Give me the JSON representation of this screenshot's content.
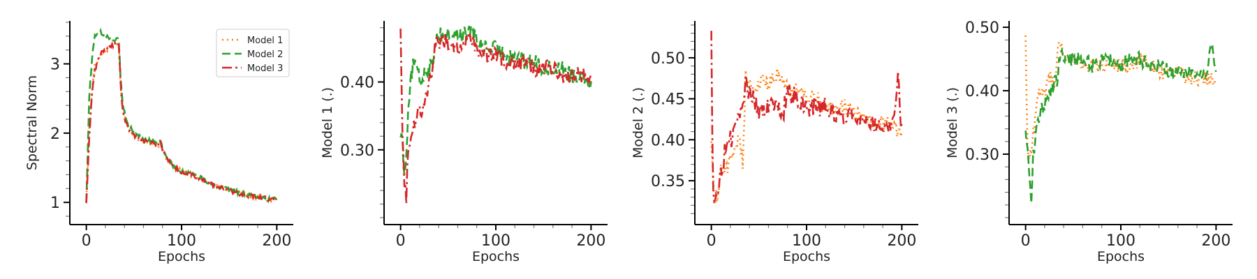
{
  "colors": {
    "model1": "#ff7f0e",
    "model2": "#2ca02c",
    "model3": "#d62728",
    "axis": "#000000"
  },
  "chart_data": [
    {
      "type": "line",
      "xlabel": "Epochs",
      "ylabel": "Spectral Norm",
      "xlim": [
        -10,
        210
      ],
      "ylim": [
        0.78,
        3.62
      ],
      "xticks": [
        0,
        100,
        200
      ],
      "yticks": [
        1,
        2,
        3
      ],
      "yminor": 0.2,
      "legend": {
        "placement": "top-right",
        "entries": [
          "Model 1",
          "Model 2",
          "Model 3"
        ]
      },
      "series": [
        {
          "name": "Model 1",
          "style": "dotted",
          "color": "#ff7f0e",
          "x": [
            0,
            3,
            6,
            9,
            12,
            15,
            20,
            25,
            30,
            34,
            36,
            38,
            40,
            45,
            50,
            55,
            60,
            65,
            70,
            75,
            78,
            80,
            85,
            90,
            95,
            100,
            110,
            120,
            130,
            140,
            150,
            160,
            170,
            180,
            190,
            200
          ],
          "values": [
            1.0,
            2.1,
            2.6,
            3.0,
            3.05,
            3.1,
            3.2,
            3.25,
            3.3,
            3.3,
            2.7,
            2.4,
            2.25,
            2.05,
            1.95,
            1.9,
            1.88,
            1.85,
            1.82,
            1.8,
            1.85,
            1.75,
            1.62,
            1.55,
            1.48,
            1.45,
            1.4,
            1.35,
            1.28,
            1.22,
            1.18,
            1.14,
            1.1,
            1.08,
            1.05,
            1.03
          ],
          "noise": 0.03
        },
        {
          "name": "Model 2",
          "style": "dashed",
          "color": "#2ca02c",
          "x": [
            0,
            3,
            6,
            9,
            12,
            15,
            20,
            25,
            30,
            34,
            36,
            38,
            40,
            45,
            50,
            55,
            60,
            65,
            70,
            75,
            78,
            80,
            85,
            90,
            95,
            100,
            110,
            120,
            130,
            140,
            150,
            160,
            170,
            180,
            190,
            200
          ],
          "values": [
            1.0,
            2.5,
            3.1,
            3.4,
            3.45,
            3.45,
            3.4,
            3.38,
            3.35,
            3.35,
            2.8,
            2.45,
            2.3,
            2.1,
            2.0,
            1.95,
            1.92,
            1.9,
            1.88,
            1.86,
            1.9,
            1.78,
            1.63,
            1.55,
            1.49,
            1.45,
            1.41,
            1.36,
            1.28,
            1.22,
            1.18,
            1.14,
            1.1,
            1.08,
            1.05,
            1.04
          ],
          "noise": 0.03
        },
        {
          "name": "Model 3",
          "style": "dashdot",
          "color": "#d62728",
          "x": [
            0,
            3,
            6,
            9,
            12,
            15,
            20,
            25,
            30,
            34,
            36,
            38,
            40,
            45,
            50,
            55,
            60,
            65,
            70,
            75,
            78,
            80,
            85,
            90,
            95,
            100,
            110,
            120,
            130,
            140,
            150,
            160,
            170,
            180,
            190,
            200
          ],
          "values": [
            0.98,
            1.9,
            2.6,
            2.9,
            3.05,
            3.15,
            3.2,
            3.25,
            3.28,
            3.3,
            2.7,
            2.35,
            2.2,
            2.05,
            1.97,
            1.92,
            1.9,
            1.87,
            1.85,
            1.82,
            1.87,
            1.75,
            1.62,
            1.54,
            1.48,
            1.44,
            1.4,
            1.34,
            1.27,
            1.22,
            1.17,
            1.13,
            1.1,
            1.08,
            1.05,
            1.04
          ],
          "noise": 0.03
        }
      ]
    },
    {
      "type": "line",
      "xlabel": "Epochs",
      "ylabel": "Model 1 (.)",
      "xlim": [
        -10,
        210
      ],
      "ylim": [
        0.2,
        0.49
      ],
      "xticks": [
        0,
        100,
        200
      ],
      "yticks": [
        0.3,
        0.4
      ],
      "yminor": 0.02,
      "series": [
        {
          "name": "Model 2",
          "style": "dashed",
          "color": "#2ca02c",
          "x": [
            0,
            2,
            4,
            6,
            8,
            10,
            14,
            18,
            22,
            26,
            30,
            34,
            36,
            40,
            50,
            60,
            70,
            75,
            80,
            90,
            100,
            110,
            120,
            130,
            140,
            150,
            160,
            170,
            180,
            190,
            200
          ],
          "values": [
            0.33,
            0.31,
            0.26,
            0.3,
            0.36,
            0.4,
            0.43,
            0.41,
            0.4,
            0.42,
            0.42,
            0.43,
            0.46,
            0.47,
            0.47,
            0.47,
            0.47,
            0.48,
            0.46,
            0.45,
            0.45,
            0.44,
            0.44,
            0.43,
            0.43,
            0.42,
            0.42,
            0.42,
            0.41,
            0.41,
            0.4
          ],
          "noise": 0.012
        },
        {
          "name": "Model 3",
          "style": "dashdot",
          "color": "#d62728",
          "x": [
            0,
            2,
            4,
            6,
            8,
            10,
            14,
            18,
            22,
            26,
            30,
            34,
            36,
            40,
            50,
            60,
            70,
            75,
            80,
            90,
            100,
            110,
            120,
            130,
            140,
            150,
            160,
            170,
            180,
            190,
            200
          ],
          "values": [
            0.49,
            0.33,
            0.25,
            0.23,
            0.3,
            0.32,
            0.34,
            0.35,
            0.36,
            0.38,
            0.4,
            0.42,
            0.45,
            0.46,
            0.46,
            0.45,
            0.46,
            0.46,
            0.45,
            0.44,
            0.44,
            0.43,
            0.43,
            0.43,
            0.42,
            0.42,
            0.42,
            0.41,
            0.41,
            0.41,
            0.4
          ],
          "noise": 0.012
        }
      ]
    },
    {
      "type": "line",
      "xlabel": "Epochs",
      "ylabel": "Model 2 (.)",
      "xlim": [
        -10,
        210
      ],
      "ylim": [
        0.305,
        0.545
      ],
      "xticks": [
        0,
        100,
        200
      ],
      "yticks": [
        0.35,
        0.4,
        0.45,
        0.5
      ],
      "yminor": 0.01,
      "series": [
        {
          "name": "Model 1",
          "style": "dotted",
          "color": "#ff7f0e",
          "x": [
            0,
            3,
            6,
            10,
            15,
            20,
            25,
            30,
            33,
            36,
            38,
            45,
            50,
            60,
            70,
            75,
            80,
            90,
            100,
            110,
            120,
            130,
            140,
            150,
            160,
            170,
            180,
            190,
            197,
            200
          ],
          "values": [
            0.4,
            0.33,
            0.33,
            0.36,
            0.36,
            0.38,
            0.39,
            0.4,
            0.37,
            0.48,
            0.47,
            0.46,
            0.47,
            0.47,
            0.48,
            0.47,
            0.46,
            0.46,
            0.45,
            0.45,
            0.44,
            0.44,
            0.44,
            0.43,
            0.43,
            0.42,
            0.42,
            0.42,
            0.41,
            0.41
          ],
          "noise": 0.01
        },
        {
          "name": "Model 3",
          "style": "dashdot",
          "color": "#d62728",
          "x": [
            0,
            1,
            2,
            4,
            6,
            10,
            15,
            20,
            25,
            30,
            33,
            36,
            38,
            45,
            50,
            60,
            70,
            75,
            80,
            90,
            100,
            110,
            120,
            130,
            140,
            150,
            160,
            170,
            180,
            190,
            196,
            198,
            200
          ],
          "values": [
            0.535,
            0.4,
            0.33,
            0.32,
            0.34,
            0.36,
            0.39,
            0.4,
            0.41,
            0.43,
            0.44,
            0.48,
            0.46,
            0.45,
            0.43,
            0.44,
            0.44,
            0.43,
            0.46,
            0.45,
            0.44,
            0.44,
            0.44,
            0.43,
            0.43,
            0.43,
            0.43,
            0.42,
            0.42,
            0.42,
            0.48,
            0.43,
            0.42
          ],
          "noise": 0.012
        }
      ]
    },
    {
      "type": "line",
      "xlabel": "Epochs",
      "ylabel": "Model 3 (.)",
      "xlim": [
        -10,
        210
      ],
      "ylim": [
        0.2,
        0.51
      ],
      "xticks": [
        0,
        100,
        200
      ],
      "yticks": [
        0.3,
        0.4,
        0.5
      ],
      "yminor": 0.02,
      "series": [
        {
          "name": "Model 1",
          "style": "dotted",
          "color": "#ff7f0e",
          "x": [
            0,
            2,
            4,
            6,
            8,
            12,
            16,
            20,
            26,
            30,
            34,
            36,
            40,
            50,
            60,
            70,
            80,
            90,
            100,
            110,
            120,
            130,
            140,
            150,
            160,
            170,
            180,
            190,
            200
          ],
          "values": [
            0.48,
            0.32,
            0.29,
            0.31,
            0.33,
            0.38,
            0.41,
            0.4,
            0.42,
            0.41,
            0.46,
            0.48,
            0.46,
            0.45,
            0.44,
            0.44,
            0.44,
            0.44,
            0.44,
            0.44,
            0.45,
            0.44,
            0.43,
            0.43,
            0.43,
            0.42,
            0.42,
            0.42,
            0.42
          ],
          "noise": 0.012
        },
        {
          "name": "Model 2",
          "style": "dashed",
          "color": "#2ca02c",
          "x": [
            0,
            2,
            4,
            6,
            8,
            12,
            16,
            20,
            26,
            30,
            34,
            36,
            40,
            50,
            60,
            70,
            80,
            90,
            100,
            110,
            120,
            130,
            140,
            150,
            160,
            170,
            180,
            190,
            195,
            200
          ],
          "values": [
            0.33,
            0.31,
            0.27,
            0.23,
            0.3,
            0.34,
            0.37,
            0.38,
            0.4,
            0.41,
            0.42,
            0.46,
            0.45,
            0.45,
            0.45,
            0.44,
            0.45,
            0.45,
            0.44,
            0.45,
            0.45,
            0.44,
            0.44,
            0.43,
            0.43,
            0.43,
            0.43,
            0.43,
            0.48,
            0.43
          ],
          "noise": 0.012
        }
      ]
    }
  ]
}
